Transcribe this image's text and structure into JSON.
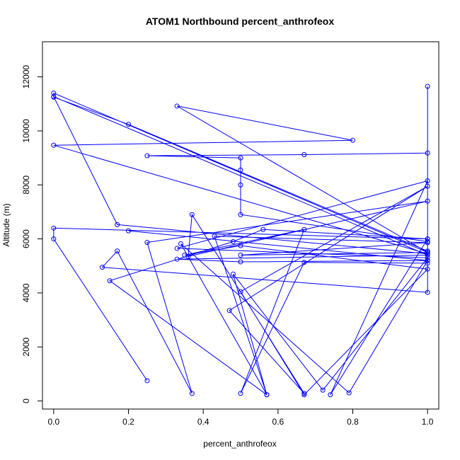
{
  "chart_data": {
    "type": "line",
    "title": "ATOM1 Northbound percent_anthrofeox",
    "xlabel": "percent_anthrofeox",
    "ylabel": "Altitude (m)",
    "xlim": [
      -0.03,
      1.03
    ],
    "ylim": [
      -300,
      13300
    ],
    "x_ticks": [
      0.0,
      0.2,
      0.4,
      0.6,
      0.8,
      1.0
    ],
    "x_tick_labels": [
      "0.0",
      "0.2",
      "0.4",
      "0.6",
      "0.8",
      "1.0"
    ],
    "y_ticks": [
      0,
      2000,
      4000,
      6000,
      8000,
      10000,
      12000
    ],
    "y_tick_labels": [
      "0",
      "2000",
      "4000",
      "6000",
      "8000",
      "10000",
      "12000"
    ],
    "grid": false,
    "series": [
      {
        "color": "#0000ff",
        "marker": "open-circle",
        "points": [
          [
            0.25,
            750
          ],
          [
            0.0,
            6000
          ],
          [
            0.0,
            6400
          ],
          [
            1.0,
            6000
          ],
          [
            1.0,
            5900
          ],
          [
            0.5,
            6900
          ],
          [
            0.5,
            8000
          ],
          [
            0.5,
            8550
          ],
          [
            0.5,
            9000
          ],
          [
            0.25,
            9080
          ],
          [
            0.67,
            9120
          ],
          [
            1.0,
            9180
          ],
          [
            1.0,
            11650
          ],
          [
            1.0,
            5550
          ],
          [
            0.2,
            10240
          ],
          [
            0.0,
            11250
          ],
          [
            0.0,
            11400
          ],
          [
            1.0,
            5500
          ],
          [
            0.33,
            10920
          ],
          [
            0.8,
            9650
          ],
          [
            0.0,
            9470
          ],
          [
            1.0,
            5450
          ],
          [
            0.17,
            6530
          ],
          [
            0.0,
            11270
          ],
          [
            1.0,
            5400
          ],
          [
            0.33,
            5250
          ],
          [
            0.5,
            5150
          ],
          [
            1.0,
            5200
          ],
          [
            1.0,
            5100
          ],
          [
            0.67,
            5130
          ],
          [
            0.5,
            280
          ],
          [
            0.67,
            6350
          ],
          [
            0.35,
            5400
          ],
          [
            0.5,
            5750
          ],
          [
            1.0,
            4880
          ],
          [
            0.67,
            230
          ],
          [
            0.5,
            4050
          ],
          [
            1.0,
            7950
          ],
          [
            0.47,
            3350
          ],
          [
            0.67,
            280
          ],
          [
            0.37,
            6900
          ],
          [
            0.36,
            5350
          ],
          [
            1.0,
            7400
          ],
          [
            0.25,
            5870
          ],
          [
            0.37,
            280
          ],
          [
            0.17,
            5550
          ],
          [
            0.13,
            4950
          ],
          [
            1.0,
            4020
          ],
          [
            1.0,
            5500
          ],
          [
            0.5,
            5400
          ],
          [
            1.0,
            5860
          ],
          [
            0.43,
            6100
          ],
          [
            0.57,
            230
          ],
          [
            0.48,
            4700
          ],
          [
            0.72,
            400
          ],
          [
            1.0,
            5300
          ],
          [
            0.33,
            5650
          ],
          [
            1.0,
            8150
          ],
          [
            0.74,
            230
          ],
          [
            1.0,
            6000
          ],
          [
            0.56,
            6350
          ],
          [
            0.48,
            5900
          ],
          [
            0.15,
            4450
          ],
          [
            0.57,
            230
          ],
          [
            0.34,
            5820
          ],
          [
            0.79,
            300
          ],
          [
            1.0,
            5200
          ],
          [
            0.2,
            6300
          ]
        ],
        "values_note": ""
      }
    ]
  }
}
